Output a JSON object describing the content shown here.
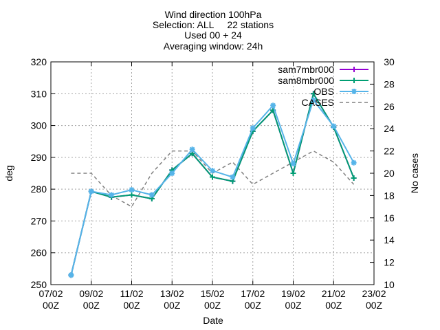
{
  "chart_data": {
    "type": "line",
    "title_lines": [
      "Wind direction 100hPa",
      "Selection: ALL     22 stations",
      "Used 00 + 24",
      "Averaging window: 24h"
    ],
    "xlabel": "Date",
    "ylabel": "deg",
    "y2label": "No cases",
    "ylim": [
      250,
      320
    ],
    "y2lim": [
      10,
      30
    ],
    "y_ticks": [
      250,
      260,
      270,
      280,
      290,
      300,
      310,
      320
    ],
    "y2_ticks": [
      10,
      12,
      14,
      16,
      18,
      20,
      22,
      24,
      26,
      28,
      30
    ],
    "x_ticks": [
      {
        "day": 0,
        "line1": "07/02",
        "line2": "00Z"
      },
      {
        "day": 2,
        "line1": "09/02",
        "line2": "00Z"
      },
      {
        "day": 4,
        "line1": "11/02",
        "line2": "00Z"
      },
      {
        "day": 6,
        "line1": "13/02",
        "line2": "00Z"
      },
      {
        "day": 8,
        "line1": "15/02",
        "line2": "00Z"
      },
      {
        "day": 10,
        "line1": "17/02",
        "line2": "00Z"
      },
      {
        "day": 12,
        "line1": "19/02",
        "line2": "00Z"
      },
      {
        "day": 14,
        "line1": "21/02",
        "line2": "00Z"
      },
      {
        "day": 16,
        "line1": "23/02",
        "line2": "00Z"
      }
    ],
    "xlim": [
      0,
      16
    ],
    "grid": true,
    "legend_position": "top-right",
    "x": [
      1,
      2,
      3,
      4,
      5,
      6,
      7,
      8,
      9,
      10,
      11,
      12,
      13,
      14,
      15
    ],
    "series": [
      {
        "name": "sam7mbr000",
        "axis": "y",
        "color": "#9400d3",
        "marker": "plus",
        "dashed": false,
        "values": [
          253,
          279.3,
          277.5,
          278.2,
          277,
          286,
          291.2,
          283.8,
          282.5,
          298.2,
          304.8,
          285,
          310,
          299.5,
          283.5
        ]
      },
      {
        "name": "sam8mbr000",
        "axis": "y",
        "color": "#009e73",
        "marker": "plus",
        "dashed": false,
        "values": [
          253,
          279.3,
          277.5,
          278.2,
          277,
          286,
          291.2,
          283.8,
          282.5,
          298.2,
          304.8,
          285,
          310,
          299.5,
          283.5
        ]
      },
      {
        "name": "OBS",
        "axis": "y",
        "color": "#56b4e9",
        "marker": "star",
        "dashed": false,
        "values": [
          253,
          279.3,
          278.2,
          279.8,
          278.2,
          285,
          292.5,
          285.8,
          283.8,
          299.2,
          306.3,
          288,
          308,
          299.8,
          288.3
        ]
      },
      {
        "name": "CASES",
        "axis": "y2",
        "color": "#808080",
        "marker": "none",
        "dashed": true,
        "values": [
          20,
          20,
          18,
          17,
          20,
          22,
          22,
          20,
          21,
          19,
          20,
          21,
          22,
          21,
          19
        ]
      }
    ]
  }
}
